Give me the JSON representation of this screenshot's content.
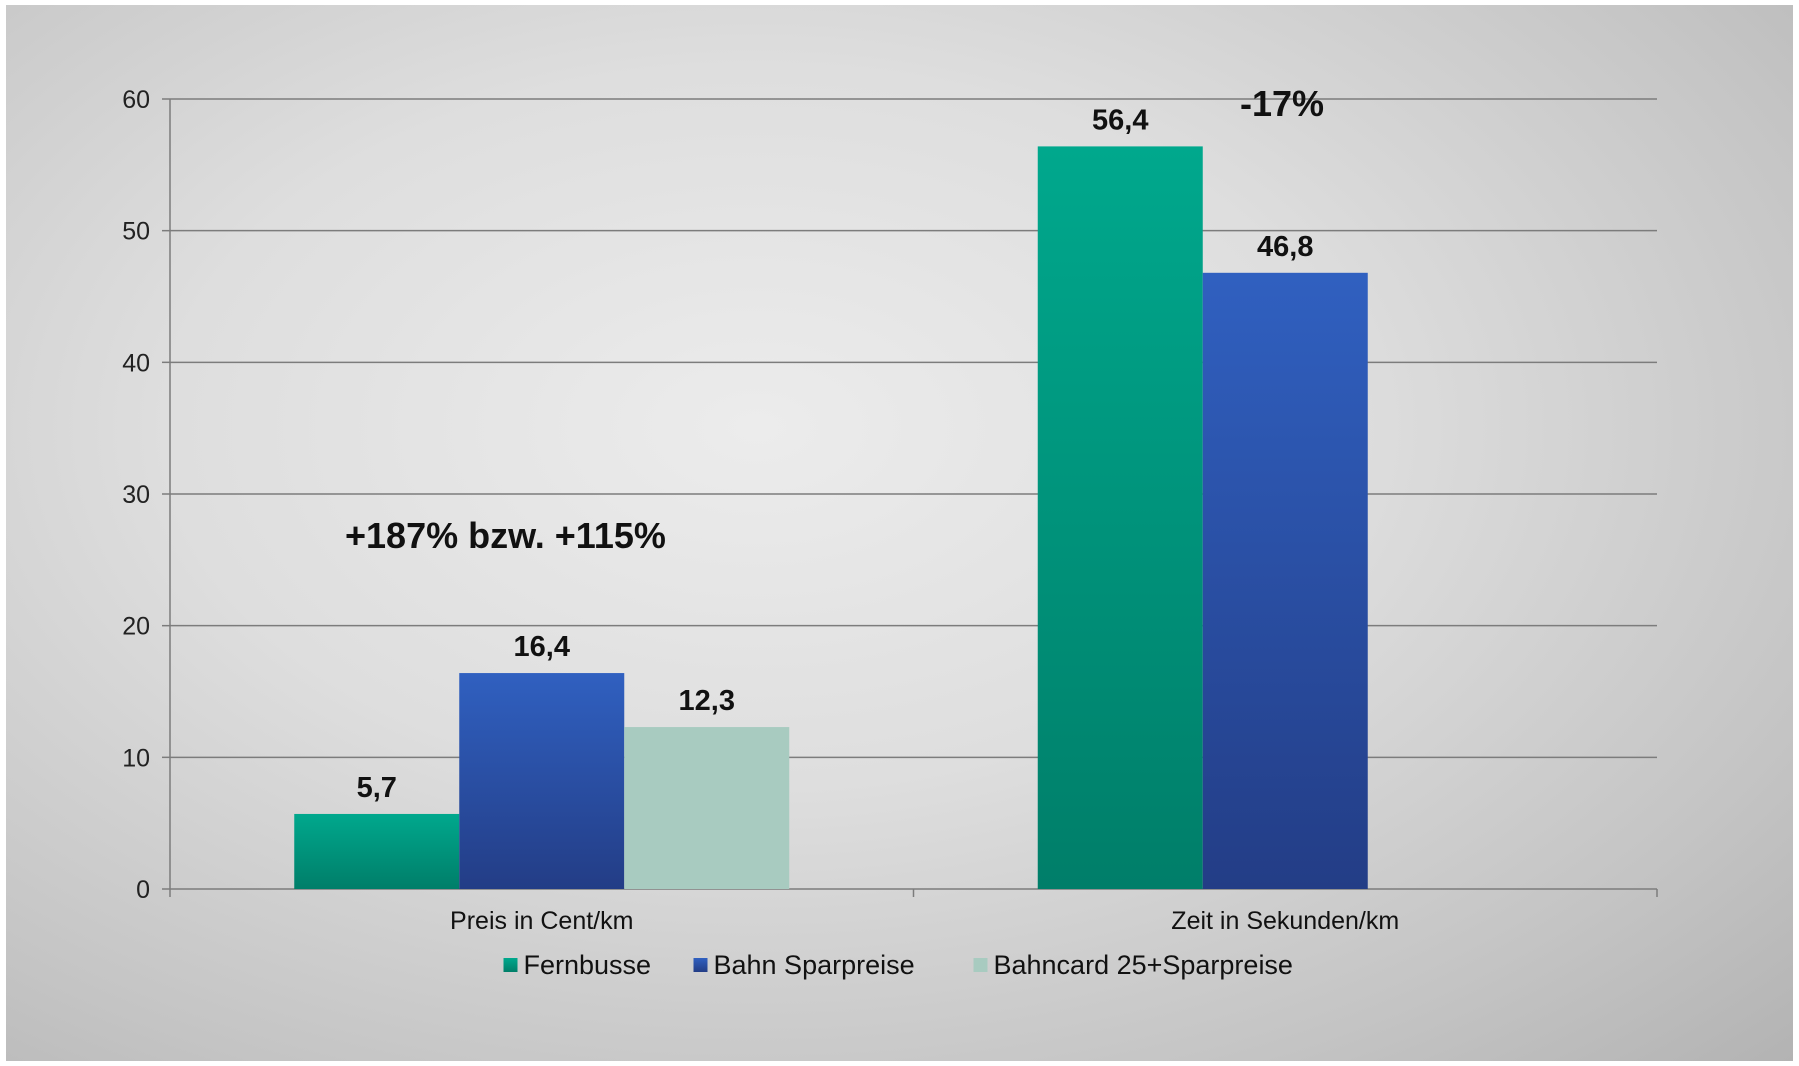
{
  "chart_data": {
    "type": "bar",
    "categories": [
      "Preis in Cent/km",
      "Zeit in Sekunden/km"
    ],
    "series": [
      {
        "name": "Fernbusse",
        "values": [
          5.7,
          56.4
        ],
        "labels": [
          "5,7",
          "56,4"
        ],
        "color": "#00a88d",
        "color_dark": "#007e69"
      },
      {
        "name": "Bahn Sparpreise",
        "values": [
          16.4,
          46.8
        ],
        "labels": [
          "16,4",
          "46,8"
        ],
        "color": "#3060c0",
        "color_dark": "#233d86"
      },
      {
        "name": "Bahncard 25+Sparpreise",
        "values": [
          12.3,
          null
        ],
        "labels": [
          "12,3",
          ""
        ],
        "color": "#a8cbc0",
        "color_dark": "#a8cbc0"
      }
    ],
    "ylim": [
      0,
      60
    ],
    "yticks": [
      "0",
      "10",
      "20",
      "30",
      "40",
      "50",
      "60"
    ],
    "ytick_values": [
      0,
      10,
      20,
      30,
      40,
      50,
      60
    ],
    "grid": true,
    "legend_position": "bottom",
    "annotations": [
      "+187% bzw. +115%",
      "-17%"
    ],
    "title": "",
    "xlabel": "",
    "ylabel": ""
  }
}
